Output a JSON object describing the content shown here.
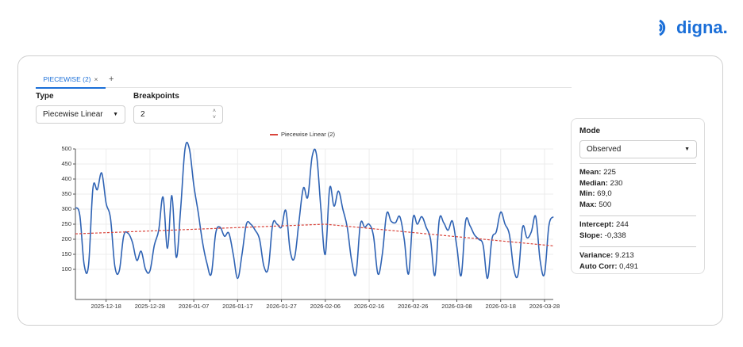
{
  "logo": {
    "text": "digna."
  },
  "tabs": [
    {
      "label": "PIECEWISE (2)",
      "close": "×"
    }
  ],
  "add_tab": "+",
  "form": {
    "type": {
      "label": "Type",
      "value": "Piecewise Linear"
    },
    "breakpoints": {
      "label": "Breakpoints",
      "value": "2"
    }
  },
  "chart_data": {
    "type": "line",
    "x": [
      "2025-12-11",
      "2025-12-12",
      "2025-12-13",
      "2025-12-14",
      "2025-12-15",
      "2025-12-16",
      "2025-12-17",
      "2025-12-18",
      "2025-12-19",
      "2025-12-20",
      "2025-12-21",
      "2025-12-22",
      "2025-12-23",
      "2025-12-24",
      "2025-12-25",
      "2025-12-26",
      "2025-12-27",
      "2025-12-28",
      "2025-12-29",
      "2025-12-30",
      "2025-12-31",
      "2026-01-01",
      "2026-01-02",
      "2026-01-03",
      "2026-01-04",
      "2026-01-05",
      "2026-01-06",
      "2026-01-07",
      "2026-01-08",
      "2026-01-09",
      "2026-01-10",
      "2026-01-11",
      "2026-01-12",
      "2026-01-13",
      "2026-01-14",
      "2026-01-15",
      "2026-01-16",
      "2026-01-17",
      "2026-01-18",
      "2026-01-19",
      "2026-01-20",
      "2026-01-21",
      "2026-01-22",
      "2026-01-23",
      "2026-01-24",
      "2026-01-25",
      "2026-01-26",
      "2026-01-27",
      "2026-01-28",
      "2026-01-29",
      "2026-01-30",
      "2026-01-31",
      "2026-02-01",
      "2026-02-02",
      "2026-02-03",
      "2026-02-04",
      "2026-02-05",
      "2026-02-06",
      "2026-02-07",
      "2026-02-08",
      "2026-02-09",
      "2026-02-10",
      "2026-02-11",
      "2026-02-12",
      "2026-02-13",
      "2026-02-14",
      "2026-02-15",
      "2026-02-16",
      "2026-02-17",
      "2026-02-18",
      "2026-02-19",
      "2026-02-20",
      "2026-02-21",
      "2026-02-22",
      "2026-02-23",
      "2026-02-24",
      "2026-02-25",
      "2026-02-26",
      "2026-02-27",
      "2026-02-28",
      "2026-03-01",
      "2026-03-02",
      "2026-03-03",
      "2026-03-04",
      "2026-03-05",
      "2026-03-06",
      "2026-03-07",
      "2026-03-08",
      "2026-03-09",
      "2026-03-10",
      "2026-03-11",
      "2026-03-12",
      "2026-03-13",
      "2026-03-14",
      "2026-03-15",
      "2026-03-16",
      "2026-03-17",
      "2026-03-18",
      "2026-03-19",
      "2026-03-20",
      "2026-03-21",
      "2026-03-22",
      "2026-03-23",
      "2026-03-24",
      "2026-03-25",
      "2026-03-26",
      "2026-03-27",
      "2026-03-28",
      "2026-03-29",
      "2026-03-30"
    ],
    "series": [
      {
        "color": "#2f63b4",
        "values": [
          305,
          280,
          115,
          115,
          370,
          365,
          420,
          320,
          270,
          110,
          95,
          210,
          220,
          190,
          130,
          160,
          100,
          95,
          180,
          230,
          340,
          170,
          345,
          140,
          300,
          500,
          500,
          380,
          290,
          190,
          120,
          85,
          220,
          240,
          210,
          220,
          150,
          70,
          150,
          250,
          250,
          230,
          200,
          110,
          105,
          250,
          250,
          240,
          295,
          160,
          140,
          260,
          370,
          340,
          475,
          480,
          300,
          150,
          370,
          310,
          360,
          300,
          240,
          130,
          85,
          250,
          240,
          250,
          210,
          85,
          150,
          285,
          260,
          255,
          275,
          200,
          85,
          270,
          250,
          275,
          240,
          200,
          80,
          265,
          255,
          230,
          260,
          175,
          80,
          260,
          245,
          215,
          200,
          180,
          70,
          200,
          225,
          290,
          250,
          215,
          100,
          85,
          240,
          205,
          225,
          275,
          130,
          85,
          245,
          275
        ]
      },
      {
        "name": "Piecewise Linear (2)",
        "color": "#d9443b",
        "dashed": true,
        "x": [
          "2025-12-11",
          "2026-02-06",
          "2026-03-30"
        ],
        "values": [
          218,
          250,
          178
        ]
      }
    ],
    "xlim": [
      "2025-12-11",
      "2026-03-30"
    ],
    "xticks": [
      "2025-12-18",
      "2025-12-28",
      "2026-01-07",
      "2026-01-17",
      "2026-01-27",
      "2026-02-06",
      "2026-02-16",
      "2026-02-26",
      "2026-03-08",
      "2026-03-18",
      "2026-03-28"
    ],
    "ylim": [
      0,
      500
    ],
    "yticks": [
      100,
      150,
      200,
      250,
      300,
      350,
      400,
      450,
      500
    ],
    "grid": true
  },
  "stats_panel": {
    "mode_label": "Mode",
    "mode_value": "Observed",
    "groups": [
      [
        {
          "label": "Mean:",
          "value": "225"
        },
        {
          "label": "Median:",
          "value": "230"
        },
        {
          "label": "Min:",
          "value": "69,0"
        },
        {
          "label": "Max:",
          "value": "500"
        }
      ],
      [
        {
          "label": "Intercept:",
          "value": "244"
        },
        {
          "label": "Slope:",
          "value": "-0,338"
        }
      ],
      [
        {
          "label": "Variance:",
          "value": "9.213"
        },
        {
          "label": "Auto Corr:",
          "value": "0,491"
        }
      ]
    ]
  }
}
